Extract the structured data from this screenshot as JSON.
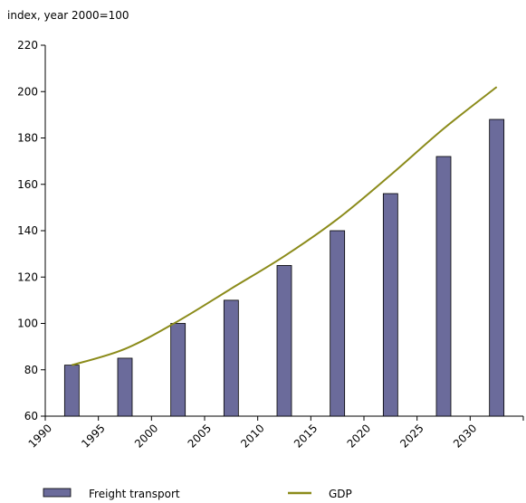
{
  "chart_data": {
    "type": "bar",
    "unit_label": "index, year 2000=100",
    "x_tick_labels": [
      "1990",
      "1995",
      "2000",
      "2005",
      "2010",
      "2015",
      "2020",
      "2025",
      "2030"
    ],
    "ylim": [
      60,
      220
    ],
    "y_ticks": [
      60,
      80,
      100,
      120,
      140,
      160,
      180,
      200,
      220
    ],
    "grid": false,
    "legend_placement": "bottom",
    "series": [
      {
        "name": "Freight transport",
        "type": "bar",
        "color": "#6b6b9b",
        "values": [
          82,
          85,
          100,
          110,
          125,
          140,
          156,
          172,
          188
        ]
      },
      {
        "name": "GDP",
        "type": "line",
        "color": "#8b8b1a",
        "values": [
          82,
          89,
          101,
          115,
          129,
          145,
          164,
          184,
          202
        ]
      }
    ]
  }
}
